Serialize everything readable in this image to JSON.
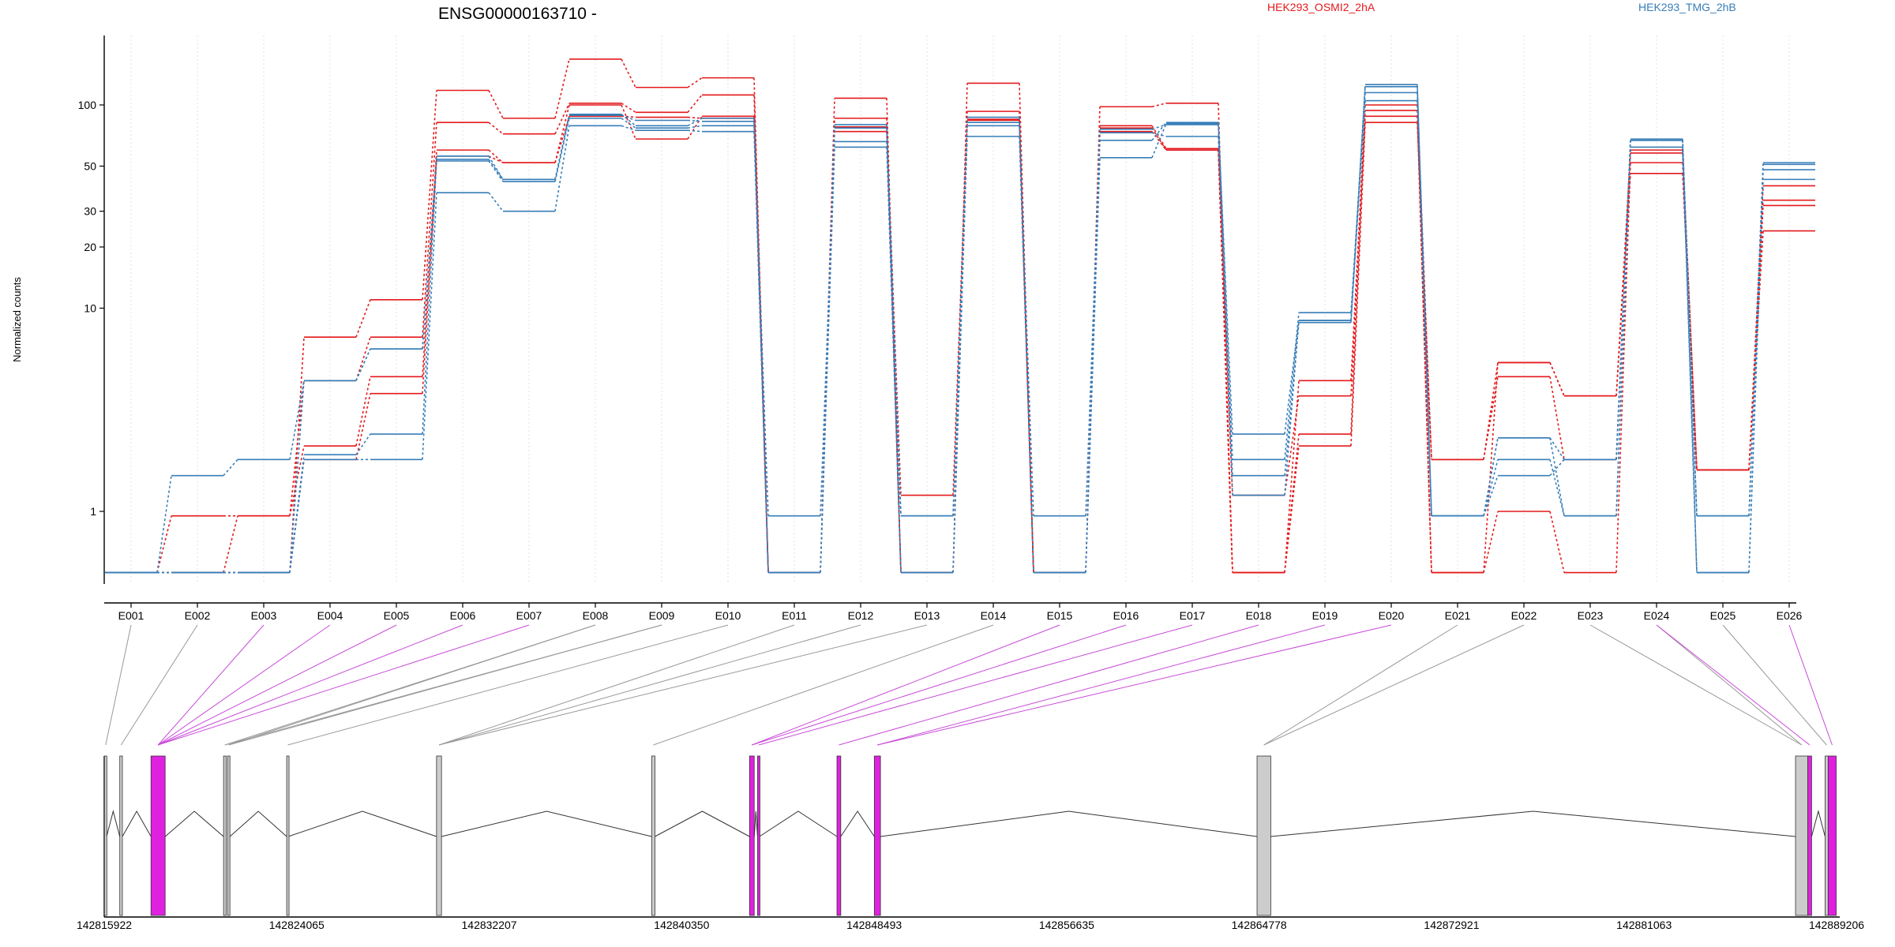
{
  "chart_data": {
    "type": "line",
    "title": "ENSG00000163710 -",
    "ylabel": "Normalized counts",
    "xlabel": "",
    "y_scale": "log",
    "y_ticks": [
      1,
      10,
      20,
      30,
      50,
      100
    ],
    "grid": "vertical dotted lines at each exon",
    "legend_position": "top-right",
    "legend": [
      {
        "name": "HEK293_OSMI2_2hA",
        "color": "#e41a1c"
      },
      {
        "name": "HEK293_TMG_2hB",
        "color": "#377eb8"
      }
    ],
    "categories": [
      "E001",
      "E002",
      "E003",
      "E004",
      "E005",
      "E006",
      "E007",
      "E008",
      "E009",
      "E010",
      "E011",
      "E012",
      "E013",
      "E014",
      "E015",
      "E016",
      "E017",
      "E018",
      "E019",
      "E020",
      "E021",
      "E022",
      "E023",
      "E024",
      "E025",
      "E026"
    ],
    "series": [
      {
        "color": "#e41a1c",
        "values": [
          0.5,
          0.95,
          0.95,
          2.1,
          4.6,
          60,
          52,
          88,
          87,
          86,
          0.5,
          78,
          1.2,
          84,
          0.5,
          77,
          60,
          0.5,
          2.1,
          82,
          1.8,
          4.6,
          1.8,
          60,
          1.6,
          40
        ]
      },
      {
        "color": "#e41a1c",
        "values": [
          0.5,
          0.5,
          0.95,
          4.4,
          7.2,
          82,
          72,
          102,
          92,
          112,
          0.5,
          86,
          0.5,
          93,
          0.5,
          79,
          61,
          1.2,
          3.7,
          88,
          0.5,
          1.0,
          0.5,
          52,
          1.6,
          32
        ]
      },
      {
        "color": "#e41a1c",
        "values": [
          0.5,
          0.5,
          0.5,
          7.2,
          11,
          118,
          86,
          168,
          122,
          136,
          0.5,
          108,
          0.5,
          128,
          0.5,
          98,
          102,
          0.5,
          4.4,
          94,
          0.5,
          5.4,
          3.7,
          58,
          1.6,
          24
        ]
      },
      {
        "color": "#e41a1c",
        "values": [
          0.5,
          0.5,
          0.5,
          1.8,
          3.8,
          56,
          52,
          100,
          68,
          88,
          0.5,
          74,
          0.5,
          85,
          0.5,
          74,
          60,
          0.5,
          2.4,
          100,
          1.8,
          5.4,
          3.7,
          46,
          1.6,
          34
        ]
      },
      {
        "color": "#377eb8",
        "values": [
          0.5,
          0.5,
          0.5,
          1.8,
          1.8,
          37,
          30,
          79,
          75,
          74,
          0.5,
          62,
          0.5,
          70,
          0.5,
          55,
          81,
          1.2,
          8.7,
          105,
          0.95,
          2.3,
          0.95,
          67,
          0.95,
          52
        ]
      },
      {
        "color": "#377eb8",
        "values": [
          0.5,
          1.5,
          1.8,
          4.4,
          6.3,
          53,
          42,
          86,
          77,
          79,
          0.95,
          66,
          0.95,
          79,
          0.95,
          67,
          82,
          1.8,
          9.5,
          115,
          0.95,
          1.5,
          1.8,
          68,
          0.95,
          48
        ]
      },
      {
        "color": "#377eb8",
        "values": [
          0.5,
          0.5,
          0.5,
          1.9,
          2.4,
          54,
          43,
          89,
          84,
          83,
          0.5,
          77,
          0.95,
          87,
          0.5,
          73,
          70,
          1.5,
          8.5,
          123,
          0.95,
          1.8,
          0.95,
          62,
          0.5,
          43
        ]
      },
      {
        "color": "#377eb8",
        "values": [
          0.5,
          0.5,
          0.5,
          4.4,
          6.3,
          56,
          43,
          90,
          79,
          86,
          0.5,
          80,
          0.5,
          82,
          0.5,
          76,
          80,
          2.4,
          8.7,
          126,
          0.95,
          2.3,
          1.8,
          67,
          0.5,
          51
        ]
      }
    ],
    "gene_model": {
      "axis_ticks": [
        "142815922",
        "142824065",
        "142832207",
        "142840350",
        "142848493",
        "142856635",
        "142864778",
        "142872921",
        "142881063",
        "142889206"
      ],
      "axis_range": [
        142815922,
        142889206
      ],
      "highlight_color": "#e020e0",
      "exon_color": "#cccccc",
      "exons": [
        {
          "start": 142815932,
          "end": 142816022,
          "exon_ids": [
            "E001"
          ],
          "highlight": false
        },
        {
          "start": 142816580,
          "end": 142816690,
          "exon_ids": [
            "E002"
          ],
          "highlight": false
        },
        {
          "start": 142817900,
          "end": 142818500,
          "exon_ids": [
            "E003",
            "E004",
            "E005",
            "E006",
            "E007"
          ],
          "highlight": true
        },
        {
          "start": 142820970,
          "end": 142821080,
          "exon_ids": [
            "E008",
            "E009"
          ],
          "highlight": false
        },
        {
          "start": 142821140,
          "end": 142821240,
          "exon_ids": [
            "E008",
            "E009"
          ],
          "highlight": false
        },
        {
          "start": 142823640,
          "end": 142823710,
          "exon_ids": [
            "E010"
          ],
          "highlight": false
        },
        {
          "start": 142829980,
          "end": 142830190,
          "exon_ids": [
            "E011",
            "E012",
            "E013"
          ],
          "highlight": false
        },
        {
          "start": 142839080,
          "end": 142839220,
          "exon_ids": [
            "E014"
          ],
          "highlight": false
        },
        {
          "start": 142843220,
          "end": 142843420,
          "exon_ids": [
            "E015",
            "E016"
          ],
          "highlight": true
        },
        {
          "start": 142843560,
          "end": 142843640,
          "exon_ids": [
            "E017"
          ],
          "highlight": true
        },
        {
          "start": 142846920,
          "end": 142847080,
          "exon_ids": [
            "E018"
          ],
          "highlight": true
        },
        {
          "start": 142848500,
          "end": 142848760,
          "exon_ids": [
            "E019",
            "E020"
          ],
          "highlight": true
        },
        {
          "start": 142864690,
          "end": 142865270,
          "exon_ids": [
            "E021",
            "E022"
          ],
          "highlight": false
        },
        {
          "start": 142887470,
          "end": 142887990,
          "exon_ids": [
            "E023",
            "E024"
          ],
          "highlight": false
        },
        {
          "start": 142887990,
          "end": 142888150,
          "exon_ids": [
            "E024"
          ],
          "highlight": true
        },
        {
          "start": 142888720,
          "end": 142888850,
          "exon_ids": [
            "E025"
          ],
          "highlight": false
        },
        {
          "start": 142888850,
          "end": 142889190,
          "exon_ids": [
            "E026"
          ],
          "highlight": true
        }
      ]
    }
  }
}
